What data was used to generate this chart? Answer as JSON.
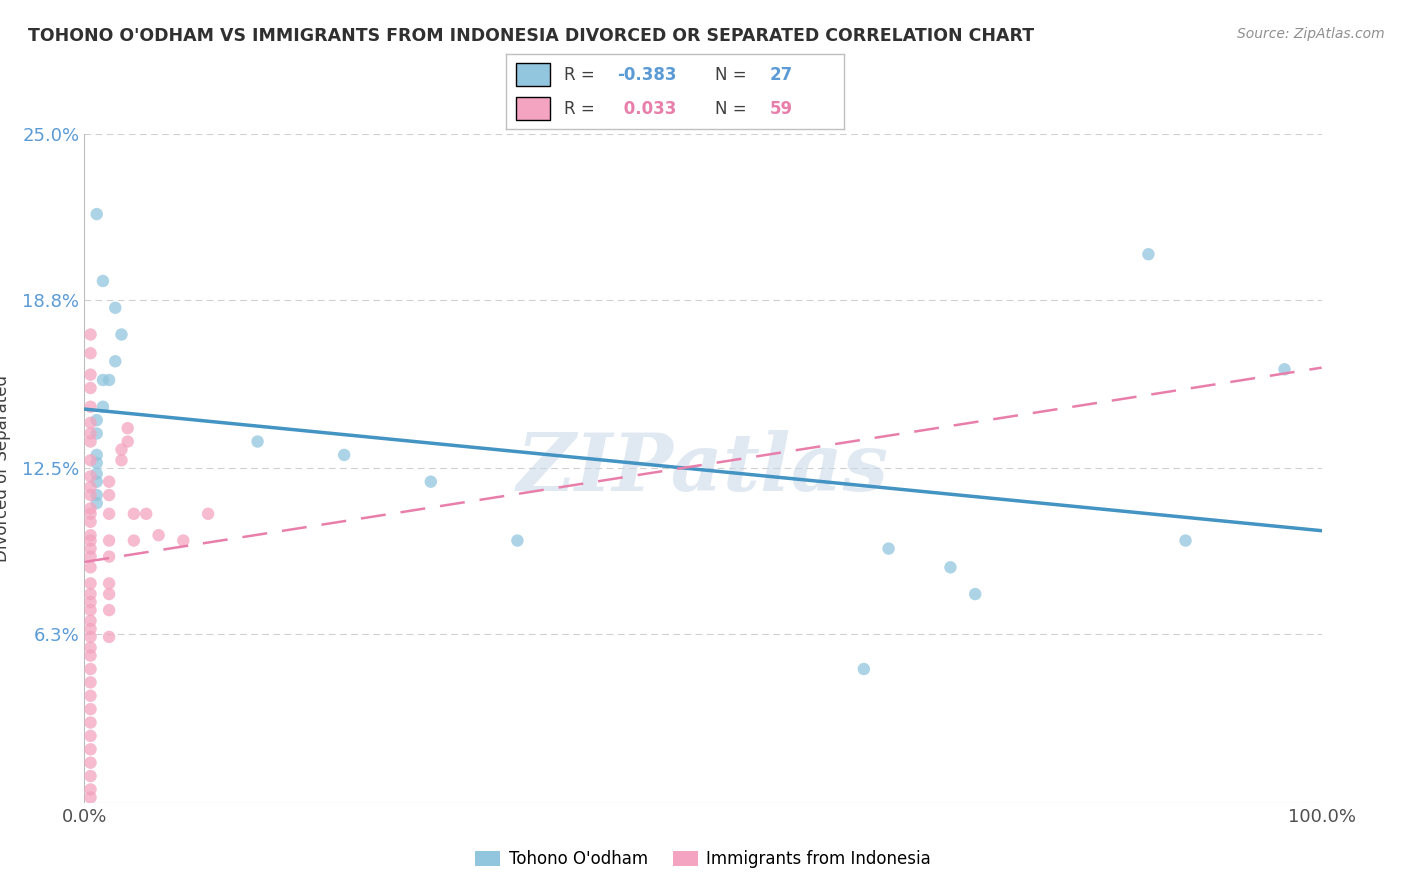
{
  "title": "TOHONO O'ODHAM VS IMMIGRANTS FROM INDONESIA DIVORCED OR SEPARATED CORRELATION CHART",
  "source": "Source: ZipAtlas.com",
  "ylabel": "Divorced or Separated",
  "watermark": "ZIPatlas",
  "series1_color": "#92c5de",
  "series2_color": "#f4a4c0",
  "series1_line_color": "#4393c3",
  "series2_line_color": "#e87fab",
  "xlim": [
    0.0,
    1.0
  ],
  "ylim": [
    0.0,
    0.25
  ],
  "yticks": [
    0.0,
    0.063,
    0.125,
    0.188,
    0.25
  ],
  "ytick_labels": [
    "",
    "6.3%",
    "12.5%",
    "18.8%",
    "25.0%"
  ],
  "xticks": [
    0.0,
    1.0
  ],
  "xtick_labels": [
    "0.0%",
    "100.0%"
  ],
  "series1_points": [
    [
      0.01,
      0.22
    ],
    [
      0.015,
      0.195
    ],
    [
      0.025,
      0.185
    ],
    [
      0.03,
      0.175
    ],
    [
      0.025,
      0.165
    ],
    [
      0.02,
      0.158
    ],
    [
      0.015,
      0.148
    ],
    [
      0.015,
      0.158
    ],
    [
      0.01,
      0.143
    ],
    [
      0.01,
      0.138
    ],
    [
      0.01,
      0.13
    ],
    [
      0.01,
      0.127
    ],
    [
      0.01,
      0.123
    ],
    [
      0.01,
      0.12
    ],
    [
      0.01,
      0.115
    ],
    [
      0.01,
      0.112
    ],
    [
      0.14,
      0.135
    ],
    [
      0.21,
      0.13
    ],
    [
      0.28,
      0.12
    ],
    [
      0.35,
      0.098
    ],
    [
      0.63,
      0.05
    ],
    [
      0.65,
      0.095
    ],
    [
      0.7,
      0.088
    ],
    [
      0.72,
      0.078
    ],
    [
      0.86,
      0.205
    ],
    [
      0.89,
      0.098
    ],
    [
      0.97,
      0.162
    ]
  ],
  "series2_points": [
    [
      0.005,
      0.175
    ],
    [
      0.005,
      0.168
    ],
    [
      0.005,
      0.16
    ],
    [
      0.005,
      0.155
    ],
    [
      0.005,
      0.148
    ],
    [
      0.005,
      0.142
    ],
    [
      0.005,
      0.138
    ],
    [
      0.005,
      0.135
    ],
    [
      0.005,
      0.128
    ],
    [
      0.005,
      0.122
    ],
    [
      0.005,
      0.118
    ],
    [
      0.005,
      0.115
    ],
    [
      0.005,
      0.11
    ],
    [
      0.005,
      0.108
    ],
    [
      0.005,
      0.105
    ],
    [
      0.005,
      0.1
    ],
    [
      0.005,
      0.098
    ],
    [
      0.005,
      0.095
    ],
    [
      0.005,
      0.092
    ],
    [
      0.005,
      0.088
    ],
    [
      0.005,
      0.082
    ],
    [
      0.005,
      0.078
    ],
    [
      0.005,
      0.075
    ],
    [
      0.005,
      0.072
    ],
    [
      0.005,
      0.068
    ],
    [
      0.005,
      0.065
    ],
    [
      0.005,
      0.062
    ],
    [
      0.005,
      0.058
    ],
    [
      0.005,
      0.055
    ],
    [
      0.005,
      0.05
    ],
    [
      0.005,
      0.045
    ],
    [
      0.005,
      0.04
    ],
    [
      0.005,
      0.035
    ],
    [
      0.005,
      0.03
    ],
    [
      0.005,
      0.025
    ],
    [
      0.005,
      0.02
    ],
    [
      0.005,
      0.015
    ],
    [
      0.005,
      0.01
    ],
    [
      0.005,
      0.005
    ],
    [
      0.005,
      0.002
    ],
    [
      0.02,
      0.062
    ],
    [
      0.02,
      0.072
    ],
    [
      0.02,
      0.078
    ],
    [
      0.02,
      0.082
    ],
    [
      0.02,
      0.092
    ],
    [
      0.02,
      0.098
    ],
    [
      0.02,
      0.108
    ],
    [
      0.02,
      0.115
    ],
    [
      0.02,
      0.12
    ],
    [
      0.03,
      0.128
    ],
    [
      0.03,
      0.132
    ],
    [
      0.035,
      0.135
    ],
    [
      0.035,
      0.14
    ],
    [
      0.04,
      0.098
    ],
    [
      0.04,
      0.108
    ],
    [
      0.05,
      0.108
    ],
    [
      0.06,
      0.1
    ],
    [
      0.08,
      0.098
    ],
    [
      0.1,
      0.108
    ]
  ],
  "series1_R": -0.383,
  "series2_R": 0.033,
  "series1_N": 27,
  "series2_N": 59,
  "background_color": "#ffffff",
  "plot_bg_color": "#ffffff",
  "grid_color": "#d0d0d0"
}
